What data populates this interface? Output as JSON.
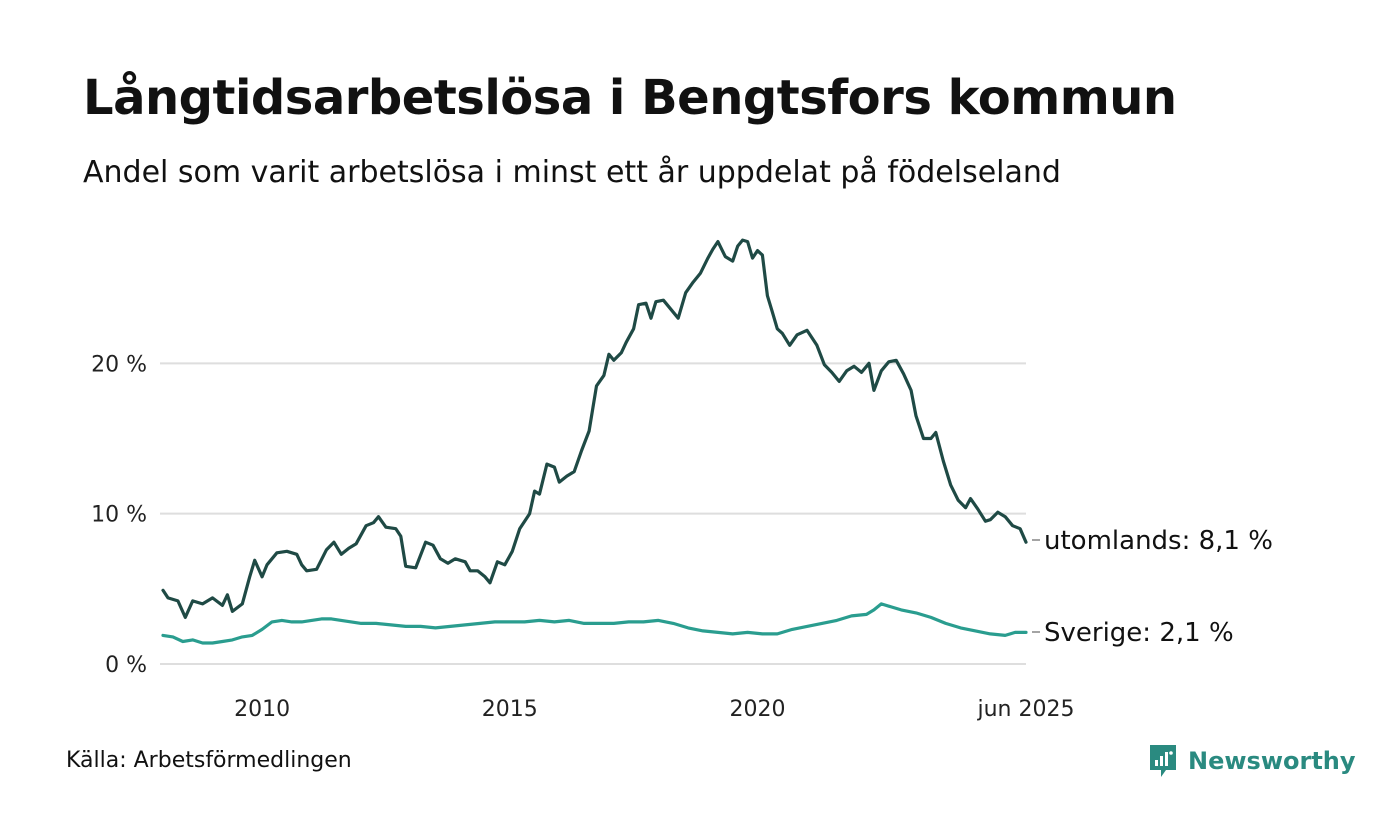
{
  "title": "Långtidsarbetslösa i Bengtsfors kommun",
  "subtitle": "Andel som varit arbetslösa i minst ett år uppdelat på födelseland",
  "source": "Källa: Arbetsförmedlingen",
  "brand": {
    "name": "Newsworthy",
    "icon": "newsworthy-logo-icon",
    "color": "#2a8a80"
  },
  "chart_data": {
    "type": "line",
    "x_range": [
      2008.0,
      2025.42
    ],
    "y_range": [
      0,
      30
    ],
    "y_ticks": [
      {
        "value": 0,
        "label": "0 %"
      },
      {
        "value": 10,
        "label": "10 %"
      },
      {
        "value": 20,
        "label": "20 %"
      }
    ],
    "x_ticks": [
      {
        "value": 2010,
        "label": "2010"
      },
      {
        "value": 2015,
        "label": "2015"
      },
      {
        "value": 2020,
        "label": "2020"
      },
      {
        "value": 2025.42,
        "label": "jun 2025"
      }
    ],
    "grid": true,
    "legend": "end-of-line labels",
    "series": [
      {
        "name": "utomlands",
        "end_label": "utomlands: 8,1 %",
        "color": "#1f4a45",
        "points": [
          [
            2008.0,
            4.9
          ],
          [
            2008.1,
            4.4
          ],
          [
            2008.3,
            4.2
          ],
          [
            2008.45,
            3.1
          ],
          [
            2008.6,
            4.2
          ],
          [
            2008.8,
            4.0
          ],
          [
            2009.0,
            4.4
          ],
          [
            2009.2,
            3.9
          ],
          [
            2009.3,
            4.6
          ],
          [
            2009.4,
            3.5
          ],
          [
            2009.6,
            4.0
          ],
          [
            2009.75,
            5.8
          ],
          [
            2009.85,
            6.9
          ],
          [
            2010.0,
            5.8
          ],
          [
            2010.1,
            6.6
          ],
          [
            2010.3,
            7.4
          ],
          [
            2010.5,
            7.5
          ],
          [
            2010.7,
            7.3
          ],
          [
            2010.8,
            6.6
          ],
          [
            2010.9,
            6.2
          ],
          [
            2011.1,
            6.3
          ],
          [
            2011.3,
            7.6
          ],
          [
            2011.45,
            8.1
          ],
          [
            2011.6,
            7.3
          ],
          [
            2011.75,
            7.7
          ],
          [
            2011.9,
            8.0
          ],
          [
            2012.1,
            9.2
          ],
          [
            2012.25,
            9.4
          ],
          [
            2012.35,
            9.8
          ],
          [
            2012.5,
            9.1
          ],
          [
            2012.7,
            9.0
          ],
          [
            2012.8,
            8.5
          ],
          [
            2012.9,
            6.5
          ],
          [
            2013.1,
            6.4
          ],
          [
            2013.3,
            8.1
          ],
          [
            2013.45,
            7.9
          ],
          [
            2013.6,
            7.0
          ],
          [
            2013.75,
            6.7
          ],
          [
            2013.9,
            7.0
          ],
          [
            2014.1,
            6.8
          ],
          [
            2014.2,
            6.2
          ],
          [
            2014.35,
            6.2
          ],
          [
            2014.5,
            5.8
          ],
          [
            2014.6,
            5.4
          ],
          [
            2014.75,
            6.8
          ],
          [
            2014.9,
            6.6
          ],
          [
            2015.05,
            7.5
          ],
          [
            2015.2,
            9.0
          ],
          [
            2015.4,
            10.0
          ],
          [
            2015.5,
            11.5
          ],
          [
            2015.6,
            11.3
          ],
          [
            2015.75,
            13.3
          ],
          [
            2015.9,
            13.1
          ],
          [
            2016.0,
            12.1
          ],
          [
            2016.15,
            12.5
          ],
          [
            2016.3,
            12.8
          ],
          [
            2016.45,
            14.2
          ],
          [
            2016.6,
            15.5
          ],
          [
            2016.75,
            18.5
          ],
          [
            2016.9,
            19.2
          ],
          [
            2017.0,
            20.6
          ],
          [
            2017.1,
            20.2
          ],
          [
            2017.25,
            20.7
          ],
          [
            2017.35,
            21.4
          ],
          [
            2017.5,
            22.3
          ],
          [
            2017.6,
            23.9
          ],
          [
            2017.75,
            24.0
          ],
          [
            2017.85,
            23.0
          ],
          [
            2017.95,
            24.1
          ],
          [
            2018.1,
            24.2
          ],
          [
            2018.25,
            23.6
          ],
          [
            2018.4,
            23.0
          ],
          [
            2018.55,
            24.7
          ],
          [
            2018.7,
            25.4
          ],
          [
            2018.85,
            26.0
          ],
          [
            2019.0,
            27.0
          ],
          [
            2019.1,
            27.6
          ],
          [
            2019.2,
            28.1
          ],
          [
            2019.35,
            27.1
          ],
          [
            2019.5,
            26.8
          ],
          [
            2019.6,
            27.8
          ],
          [
            2019.7,
            28.2
          ],
          [
            2019.8,
            28.1
          ],
          [
            2019.9,
            27.0
          ],
          [
            2020.0,
            27.5
          ],
          [
            2020.1,
            27.2
          ],
          [
            2020.2,
            24.5
          ],
          [
            2020.3,
            23.4
          ],
          [
            2020.4,
            22.3
          ],
          [
            2020.5,
            22.0
          ],
          [
            2020.65,
            21.2
          ],
          [
            2020.8,
            21.9
          ],
          [
            2021.0,
            22.2
          ],
          [
            2021.2,
            21.2
          ],
          [
            2021.35,
            19.9
          ],
          [
            2021.5,
            19.4
          ],
          [
            2021.65,
            18.8
          ],
          [
            2021.8,
            19.5
          ],
          [
            2021.95,
            19.8
          ],
          [
            2022.1,
            19.4
          ],
          [
            2022.25,
            20.0
          ],
          [
            2022.35,
            18.2
          ],
          [
            2022.5,
            19.5
          ],
          [
            2022.65,
            20.1
          ],
          [
            2022.8,
            20.2
          ],
          [
            2022.95,
            19.3
          ],
          [
            2023.1,
            18.2
          ],
          [
            2023.2,
            16.5
          ],
          [
            2023.35,
            15.0
          ],
          [
            2023.5,
            15.0
          ],
          [
            2023.6,
            15.4
          ],
          [
            2023.75,
            13.5
          ],
          [
            2023.9,
            11.9
          ],
          [
            2024.05,
            10.9
          ],
          [
            2024.2,
            10.4
          ],
          [
            2024.3,
            11.0
          ],
          [
            2024.45,
            10.3
          ],
          [
            2024.6,
            9.5
          ],
          [
            2024.7,
            9.6
          ],
          [
            2024.85,
            10.1
          ],
          [
            2025.0,
            9.8
          ],
          [
            2025.15,
            9.2
          ],
          [
            2025.3,
            9.0
          ],
          [
            2025.42,
            8.1
          ]
        ]
      },
      {
        "name": "Sverige",
        "end_label": "Sverige: 2,1 %",
        "color": "#2a9d8f",
        "points": [
          [
            2008.0,
            1.9
          ],
          [
            2008.2,
            1.8
          ],
          [
            2008.4,
            1.5
          ],
          [
            2008.6,
            1.6
          ],
          [
            2008.8,
            1.4
          ],
          [
            2009.0,
            1.4
          ],
          [
            2009.2,
            1.5
          ],
          [
            2009.4,
            1.6
          ],
          [
            2009.6,
            1.8
          ],
          [
            2009.8,
            1.9
          ],
          [
            2010.0,
            2.3
          ],
          [
            2010.2,
            2.8
          ],
          [
            2010.4,
            2.9
          ],
          [
            2010.6,
            2.8
          ],
          [
            2010.8,
            2.8
          ],
          [
            2011.0,
            2.9
          ],
          [
            2011.2,
            3.0
          ],
          [
            2011.4,
            3.0
          ],
          [
            2011.6,
            2.9
          ],
          [
            2011.8,
            2.8
          ],
          [
            2012.0,
            2.7
          ],
          [
            2012.3,
            2.7
          ],
          [
            2012.6,
            2.6
          ],
          [
            2012.9,
            2.5
          ],
          [
            2013.2,
            2.5
          ],
          [
            2013.5,
            2.4
          ],
          [
            2013.8,
            2.5
          ],
          [
            2014.1,
            2.6
          ],
          [
            2014.4,
            2.7
          ],
          [
            2014.7,
            2.8
          ],
          [
            2015.0,
            2.8
          ],
          [
            2015.3,
            2.8
          ],
          [
            2015.6,
            2.9
          ],
          [
            2015.9,
            2.8
          ],
          [
            2016.2,
            2.9
          ],
          [
            2016.5,
            2.7
          ],
          [
            2016.8,
            2.7
          ],
          [
            2017.1,
            2.7
          ],
          [
            2017.4,
            2.8
          ],
          [
            2017.7,
            2.8
          ],
          [
            2018.0,
            2.9
          ],
          [
            2018.3,
            2.7
          ],
          [
            2018.6,
            2.4
          ],
          [
            2018.9,
            2.2
          ],
          [
            2019.2,
            2.1
          ],
          [
            2019.5,
            2.0
          ],
          [
            2019.8,
            2.1
          ],
          [
            2020.1,
            2.0
          ],
          [
            2020.4,
            2.0
          ],
          [
            2020.7,
            2.3
          ],
          [
            2021.0,
            2.5
          ],
          [
            2021.3,
            2.7
          ],
          [
            2021.6,
            2.9
          ],
          [
            2021.9,
            3.2
          ],
          [
            2022.2,
            3.3
          ],
          [
            2022.35,
            3.6
          ],
          [
            2022.5,
            4.0
          ],
          [
            2022.7,
            3.8
          ],
          [
            2022.9,
            3.6
          ],
          [
            2023.2,
            3.4
          ],
          [
            2023.5,
            3.1
          ],
          [
            2023.8,
            2.7
          ],
          [
            2024.1,
            2.4
          ],
          [
            2024.4,
            2.2
          ],
          [
            2024.7,
            2.0
          ],
          [
            2025.0,
            1.9
          ],
          [
            2025.2,
            2.1
          ],
          [
            2025.42,
            2.1
          ]
        ]
      }
    ]
  }
}
